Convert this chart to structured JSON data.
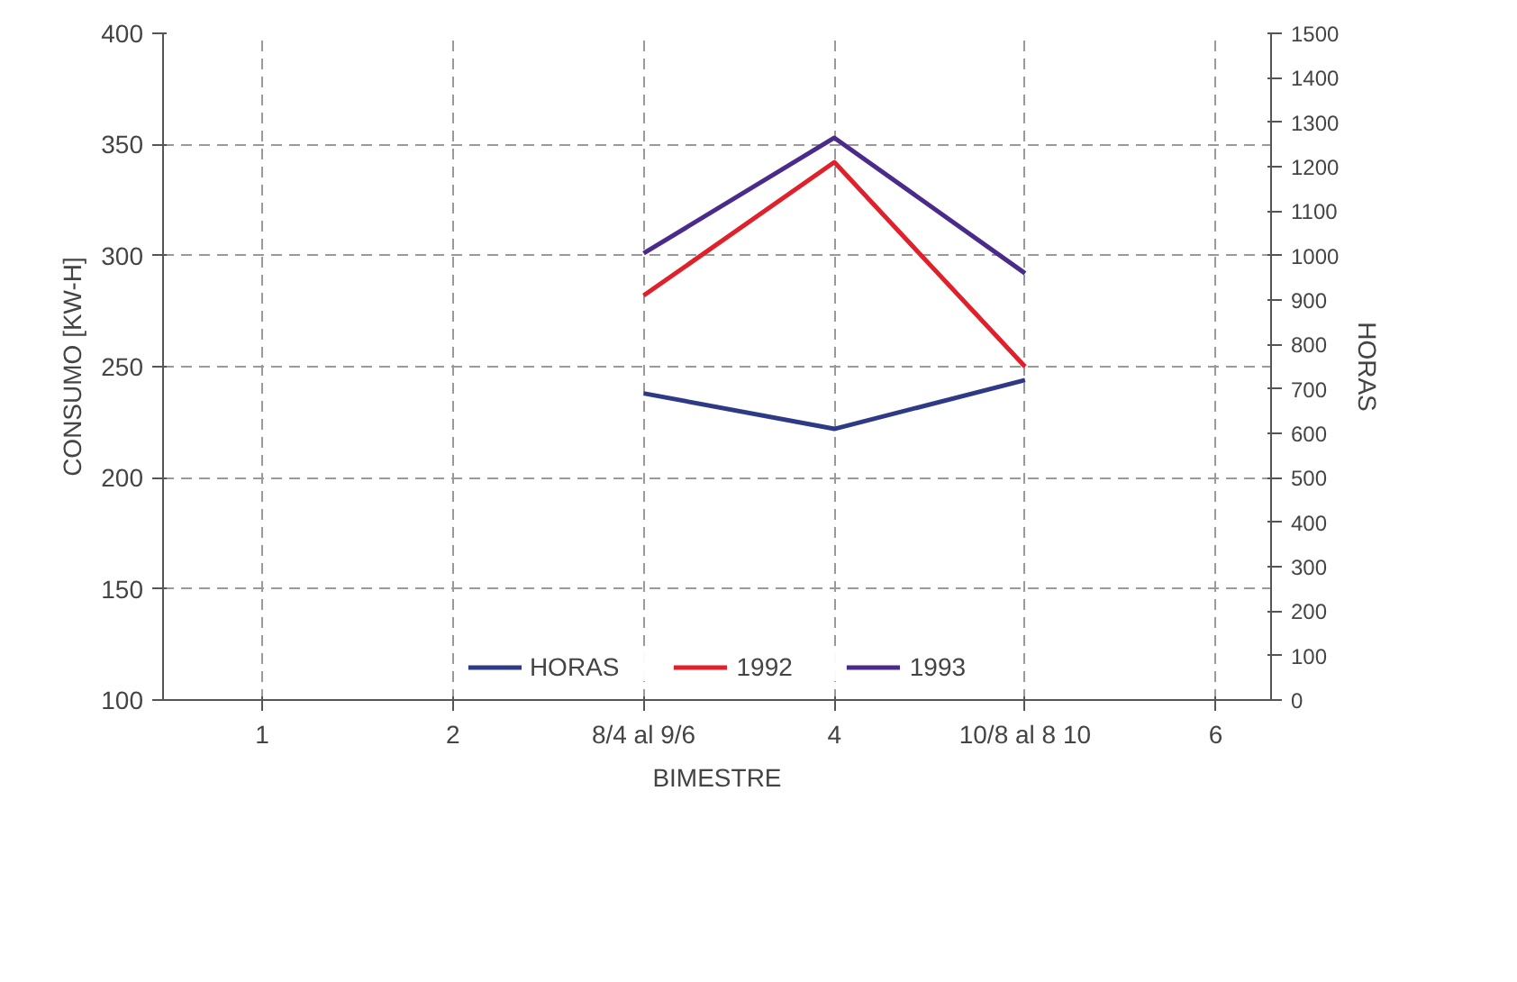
{
  "chart_data": {
    "type": "line",
    "xlabel": "BIMESTRE",
    "ylabel": "CONSUMO [KW-H]",
    "y2label": "HORAS",
    "categories": [
      "1",
      "2",
      "8/4 al 9/6",
      "4",
      "10/8 al 8 10",
      "6"
    ],
    "ylim": [
      100,
      400
    ],
    "yticks": [
      100,
      150,
      200,
      250,
      300,
      350,
      400
    ],
    "y2lim": [
      0,
      1500
    ],
    "y2ticks": [
      0,
      100,
      200,
      300,
      400,
      500,
      600,
      700,
      800,
      900,
      1000,
      1100,
      1200,
      1300,
      1400,
      1500
    ],
    "grid": true,
    "legend": "bottom",
    "line_style": "solid",
    "series": [
      {
        "name": "HORAS",
        "color": "#2e3a86",
        "axis": "y2",
        "values": [
          null,
          null,
          690,
          610,
          720,
          null
        ]
      },
      {
        "name": "1992",
        "color": "#e0202a",
        "values": [
          null,
          null,
          282,
          342,
          250,
          null
        ]
      },
      {
        "name": "1993",
        "color": "#4a2a8a",
        "values": [
          null,
          null,
          301,
          353,
          292,
          null
        ]
      }
    ]
  }
}
